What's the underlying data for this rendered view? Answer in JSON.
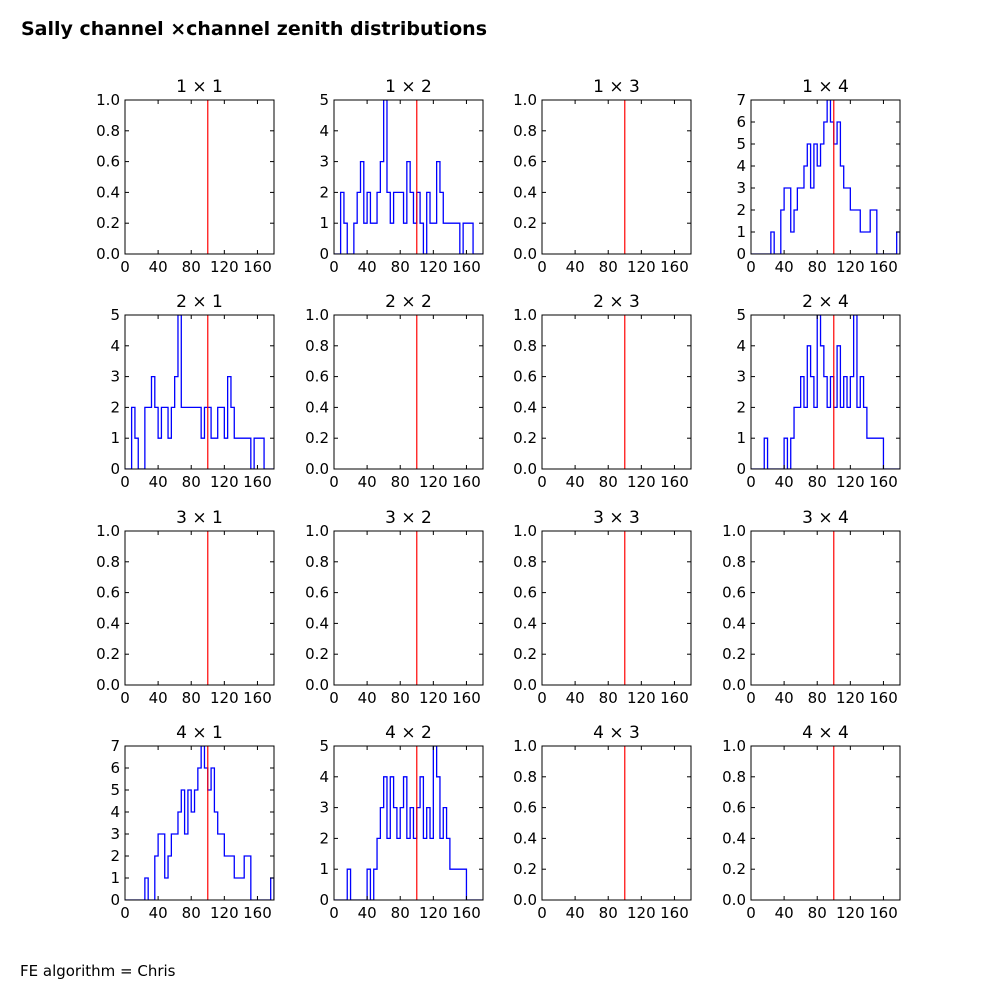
{
  "figure": {
    "title": "Sally channel ×channel zenith distributions",
    "footer": "FE algorithm = Chris"
  },
  "colors": {
    "hist": "#0000ff",
    "ref_line": "#ff0000",
    "axes": "#000000"
  },
  "chart_data": [
    {
      "type": "histogram",
      "title": "1 × 1",
      "row": 1,
      "col": 1,
      "xlim": [
        0,
        180
      ],
      "xticks": [
        0,
        40,
        80,
        120,
        160
      ],
      "ylim": [
        0,
        1
      ],
      "yticks": [
        "0.0",
        "0.2",
        "0.4",
        "0.6",
        "0.8",
        "1.0"
      ],
      "ref_x": 100,
      "bin_edges": [],
      "counts": []
    },
    {
      "type": "histogram",
      "title": "1 × 2",
      "row": 1,
      "col": 2,
      "xlim": [
        0,
        180
      ],
      "xticks": [
        0,
        40,
        80,
        120,
        160
      ],
      "ylim": [
        0,
        5
      ],
      "yticks": [
        "0",
        "1",
        "2",
        "3",
        "4",
        "5"
      ],
      "ref_x": 100,
      "bin_edges": [
        0,
        4,
        8,
        12,
        16,
        20,
        24,
        28,
        32,
        36,
        40,
        44,
        48,
        52,
        56,
        60,
        64,
        68,
        72,
        76,
        80,
        84,
        88,
        92,
        96,
        100,
        104,
        108,
        112,
        116,
        120,
        124,
        128,
        132,
        136,
        140,
        144,
        148,
        152,
        156,
        160,
        164,
        168,
        172,
        176,
        180
      ],
      "counts": [
        0,
        0,
        2,
        1,
        0,
        0,
        1,
        2,
        3,
        1,
        2,
        1,
        1,
        2,
        3,
        5,
        2,
        1,
        2,
        2,
        2,
        1,
        3,
        2,
        1,
        2,
        1,
        0,
        2,
        1,
        1,
        3,
        2,
        1,
        1,
        1,
        1,
        1,
        0,
        1,
        1,
        1,
        0,
        0,
        0
      ]
    },
    {
      "type": "histogram",
      "title": "1 × 3",
      "row": 1,
      "col": 3,
      "xlim": [
        0,
        180
      ],
      "xticks": [
        0,
        40,
        80,
        120,
        160
      ],
      "ylim": [
        0,
        1
      ],
      "yticks": [
        "0.0",
        "0.2",
        "0.4",
        "0.6",
        "0.8",
        "1.0"
      ],
      "ref_x": 100,
      "bin_edges": [],
      "counts": []
    },
    {
      "type": "histogram",
      "title": "1 × 4",
      "row": 1,
      "col": 4,
      "xlim": [
        0,
        180
      ],
      "xticks": [
        0,
        40,
        80,
        120,
        160
      ],
      "ylim": [
        0,
        7
      ],
      "yticks": [
        "0",
        "1",
        "2",
        "3",
        "4",
        "5",
        "6",
        "7"
      ],
      "ref_x": 100,
      "bin_edges": [
        0,
        4,
        8,
        12,
        16,
        20,
        24,
        28,
        32,
        36,
        40,
        44,
        48,
        52,
        56,
        60,
        64,
        68,
        72,
        76,
        80,
        84,
        88,
        92,
        96,
        100,
        104,
        108,
        112,
        116,
        120,
        124,
        128,
        132,
        136,
        140,
        144,
        148,
        152,
        156,
        160,
        164,
        168,
        172,
        176,
        180
      ],
      "counts": [
        0,
        0,
        0,
        0,
        0,
        0,
        1,
        0,
        0,
        2,
        3,
        3,
        1,
        2,
        3,
        3,
        4,
        5,
        3,
        5,
        4,
        5,
        6,
        7,
        6,
        5,
        6,
        4,
        3,
        3,
        2,
        2,
        2,
        1,
        1,
        1,
        2,
        2,
        0,
        0,
        0,
        0,
        0,
        0,
        1
      ]
    },
    {
      "type": "histogram",
      "title": "2 × 1",
      "row": 2,
      "col": 1,
      "xlim": [
        0,
        180
      ],
      "xticks": [
        0,
        40,
        80,
        120,
        160
      ],
      "ylim": [
        0,
        5
      ],
      "yticks": [
        "0",
        "1",
        "2",
        "3",
        "4",
        "5"
      ],
      "ref_x": 100,
      "bin_edges": [
        0,
        4,
        8,
        12,
        16,
        20,
        24,
        28,
        32,
        36,
        40,
        44,
        48,
        52,
        56,
        60,
        64,
        68,
        72,
        76,
        80,
        84,
        88,
        92,
        96,
        100,
        104,
        108,
        112,
        116,
        120,
        124,
        128,
        132,
        136,
        140,
        144,
        148,
        152,
        156,
        160,
        164,
        168,
        172,
        176,
        180
      ],
      "counts": [
        0,
        0,
        2,
        1,
        0,
        0,
        2,
        2,
        3,
        2,
        1,
        2,
        2,
        1,
        2,
        3,
        5,
        2,
        2,
        2,
        2,
        2,
        2,
        1,
        2,
        2,
        1,
        1,
        2,
        2,
        1,
        3,
        2,
        1,
        1,
        1,
        1,
        1,
        0,
        1,
        1,
        1,
        0,
        0,
        0
      ]
    },
    {
      "type": "histogram",
      "title": "2 × 2",
      "row": 2,
      "col": 2,
      "xlim": [
        0,
        180
      ],
      "xticks": [
        0,
        40,
        80,
        120,
        160
      ],
      "ylim": [
        0,
        1
      ],
      "yticks": [
        "0.0",
        "0.2",
        "0.4",
        "0.6",
        "0.8",
        "1.0"
      ],
      "ref_x": 100,
      "bin_edges": [],
      "counts": []
    },
    {
      "type": "histogram",
      "title": "2 × 3",
      "row": 2,
      "col": 3,
      "xlim": [
        0,
        180
      ],
      "xticks": [
        0,
        40,
        80,
        120,
        160
      ],
      "ylim": [
        0,
        1
      ],
      "yticks": [
        "0.0",
        "0.2",
        "0.4",
        "0.6",
        "0.8",
        "1.0"
      ],
      "ref_x": 100,
      "bin_edges": [],
      "counts": []
    },
    {
      "type": "histogram",
      "title": "2 × 4",
      "row": 2,
      "col": 4,
      "xlim": [
        0,
        180
      ],
      "xticks": [
        0,
        40,
        80,
        120,
        160
      ],
      "ylim": [
        0,
        5
      ],
      "yticks": [
        "0",
        "1",
        "2",
        "3",
        "4",
        "5"
      ],
      "ref_x": 100,
      "bin_edges": [
        0,
        4,
        8,
        12,
        16,
        20,
        24,
        28,
        32,
        36,
        40,
        44,
        48,
        52,
        56,
        60,
        64,
        68,
        72,
        76,
        80,
        84,
        88,
        92,
        96,
        100,
        104,
        108,
        112,
        116,
        120,
        124,
        128,
        132,
        136,
        140,
        144,
        148,
        152,
        156,
        160,
        164,
        168,
        172,
        176,
        180
      ],
      "counts": [
        0,
        0,
        0,
        0,
        1,
        0,
        0,
        0,
        0,
        0,
        1,
        0,
        1,
        2,
        2,
        3,
        2,
        4,
        3,
        2,
        5,
        4,
        3,
        2,
        3,
        2,
        4,
        2,
        3,
        2,
        3,
        5,
        2,
        3,
        2,
        1,
        1,
        1,
        1,
        1,
        0,
        0,
        0,
        0,
        0
      ]
    },
    {
      "type": "histogram",
      "title": "3 × 1",
      "row": 3,
      "col": 1,
      "xlim": [
        0,
        180
      ],
      "xticks": [
        0,
        40,
        80,
        120,
        160
      ],
      "ylim": [
        0,
        1
      ],
      "yticks": [
        "0.0",
        "0.2",
        "0.4",
        "0.6",
        "0.8",
        "1.0"
      ],
      "ref_x": 100,
      "bin_edges": [],
      "counts": []
    },
    {
      "type": "histogram",
      "title": "3 × 2",
      "row": 3,
      "col": 2,
      "xlim": [
        0,
        180
      ],
      "xticks": [
        0,
        40,
        80,
        120,
        160
      ],
      "ylim": [
        0,
        1
      ],
      "yticks": [
        "0.0",
        "0.2",
        "0.4",
        "0.6",
        "0.8",
        "1.0"
      ],
      "ref_x": 100,
      "bin_edges": [],
      "counts": []
    },
    {
      "type": "histogram",
      "title": "3 × 3",
      "row": 3,
      "col": 3,
      "xlim": [
        0,
        180
      ],
      "xticks": [
        0,
        40,
        80,
        120,
        160
      ],
      "ylim": [
        0,
        1
      ],
      "yticks": [
        "0.0",
        "0.2",
        "0.4",
        "0.6",
        "0.8",
        "1.0"
      ],
      "ref_x": 100,
      "bin_edges": [],
      "counts": []
    },
    {
      "type": "histogram",
      "title": "3 × 4",
      "row": 3,
      "col": 4,
      "xlim": [
        0,
        180
      ],
      "xticks": [
        0,
        40,
        80,
        120,
        160
      ],
      "ylim": [
        0,
        1
      ],
      "yticks": [
        "0.0",
        "0.2",
        "0.4",
        "0.6",
        "0.8",
        "1.0"
      ],
      "ref_x": 100,
      "bin_edges": [],
      "counts": []
    },
    {
      "type": "histogram",
      "title": "4 × 1",
      "row": 4,
      "col": 1,
      "xlim": [
        0,
        180
      ],
      "xticks": [
        0,
        40,
        80,
        120,
        160
      ],
      "ylim": [
        0,
        7
      ],
      "yticks": [
        "0",
        "1",
        "2",
        "3",
        "4",
        "5",
        "6",
        "7"
      ],
      "ref_x": 100,
      "bin_edges": [
        0,
        4,
        8,
        12,
        16,
        20,
        24,
        28,
        32,
        36,
        40,
        44,
        48,
        52,
        56,
        60,
        64,
        68,
        72,
        76,
        80,
        84,
        88,
        92,
        96,
        100,
        104,
        108,
        112,
        116,
        120,
        124,
        128,
        132,
        136,
        140,
        144,
        148,
        152,
        156,
        160,
        164,
        168,
        172,
        176,
        180
      ],
      "counts": [
        0,
        0,
        0,
        0,
        0,
        0,
        1,
        0,
        0,
        2,
        3,
        3,
        1,
        2,
        3,
        3,
        4,
        5,
        3,
        5,
        4,
        5,
        6,
        7,
        6,
        5,
        6,
        4,
        3,
        3,
        2,
        2,
        2,
        1,
        1,
        1,
        2,
        2,
        0,
        0,
        0,
        0,
        0,
        0,
        1
      ]
    },
    {
      "type": "histogram",
      "title": "4 × 2",
      "row": 4,
      "col": 2,
      "xlim": [
        0,
        180
      ],
      "xticks": [
        0,
        40,
        80,
        120,
        160
      ],
      "ylim": [
        0,
        5
      ],
      "yticks": [
        "0",
        "1",
        "2",
        "3",
        "4",
        "5"
      ],
      "ref_x": 100,
      "bin_edges": [
        0,
        4,
        8,
        12,
        16,
        20,
        24,
        28,
        32,
        36,
        40,
        44,
        48,
        52,
        56,
        60,
        64,
        68,
        72,
        76,
        80,
        84,
        88,
        92,
        96,
        100,
        104,
        108,
        112,
        116,
        120,
        124,
        128,
        132,
        136,
        140,
        144,
        148,
        152,
        156,
        160,
        164,
        168,
        172,
        176,
        180
      ],
      "counts": [
        0,
        0,
        0,
        0,
        1,
        0,
        0,
        0,
        0,
        0,
        1,
        0,
        1,
        2,
        3,
        4,
        2,
        4,
        3,
        2,
        3,
        4,
        2,
        3,
        2,
        3,
        4,
        2,
        3,
        2,
        5,
        4,
        2,
        3,
        2,
        1,
        1,
        1,
        1,
        1,
        0,
        0,
        0,
        0,
        0
      ]
    },
    {
      "type": "histogram",
      "title": "4 × 3",
      "row": 4,
      "col": 3,
      "xlim": [
        0,
        180
      ],
      "xticks": [
        0,
        40,
        80,
        120,
        160
      ],
      "ylim": [
        0,
        1
      ],
      "yticks": [
        "0.0",
        "0.2",
        "0.4",
        "0.6",
        "0.8",
        "1.0"
      ],
      "ref_x": 100,
      "bin_edges": [],
      "counts": []
    },
    {
      "type": "histogram",
      "title": "4 × 4",
      "row": 4,
      "col": 4,
      "xlim": [
        0,
        180
      ],
      "xticks": [
        0,
        40,
        80,
        120,
        160
      ],
      "ylim": [
        0,
        1
      ],
      "yticks": [
        "0.0",
        "0.2",
        "0.4",
        "0.6",
        "0.8",
        "1.0"
      ],
      "ref_x": 100,
      "bin_edges": [],
      "counts": []
    }
  ]
}
